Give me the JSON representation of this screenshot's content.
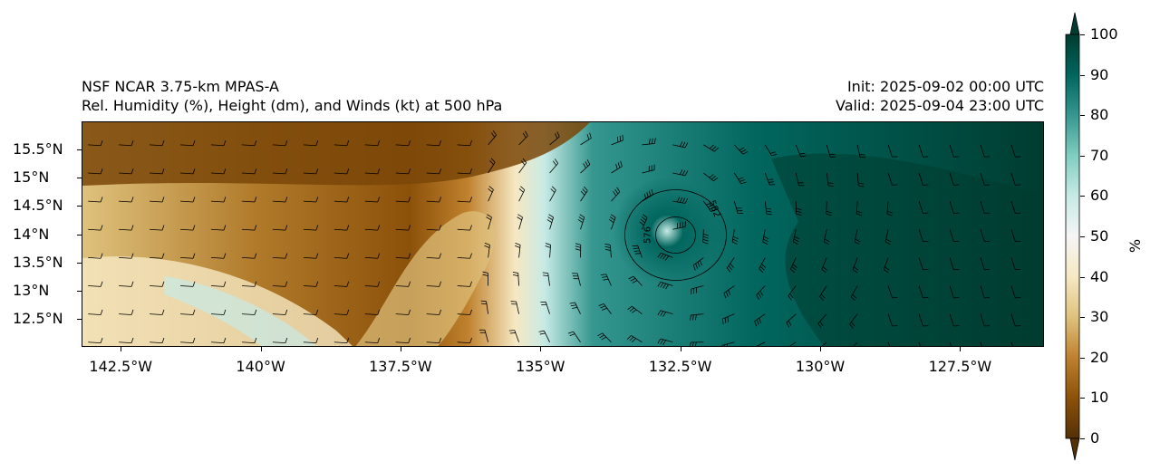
{
  "titles": {
    "left_line1": "NSF NCAR 3.75-km MPAS-A",
    "left_line2": "Rel. Humidity (%), Height (dm), and Winds (kt) at 500 hPa",
    "right_line1": "Init: 2025-09-02 00:00 UTC",
    "right_line2": "Valid: 2025-09-04 23:00 UTC"
  },
  "map": {
    "lon_range": [
      -143.2,
      -126.0
    ],
    "lat_range": [
      12.0,
      16.0
    ],
    "y_ticks": [
      "15.5°N",
      "15°N",
      "14.5°N",
      "14°N",
      "13.5°N",
      "13°N",
      "12.5°N"
    ],
    "x_ticks": [
      "142.5°W",
      "140°W",
      "137.5°W",
      "135°W",
      "132.5°W",
      "130°W",
      "127.5°W"
    ],
    "contours": [
      {
        "label": "576"
      },
      {
        "label": "582"
      }
    ],
    "storm_center": {
      "lon": -132.6,
      "lat": 14.0
    }
  },
  "colorbar": {
    "unit": "%",
    "min": 0,
    "max": 100,
    "ticks": [
      "0",
      "10",
      "20",
      "30",
      "40",
      "50",
      "60",
      "70",
      "80",
      "90",
      "100"
    ],
    "colors": [
      "#543005",
      "#8c510a",
      "#bf812d",
      "#dfc27d",
      "#f6e8c3",
      "#f5f5f5",
      "#c7eae5",
      "#80cdc1",
      "#35978f",
      "#01665e",
      "#003c30"
    ]
  }
}
